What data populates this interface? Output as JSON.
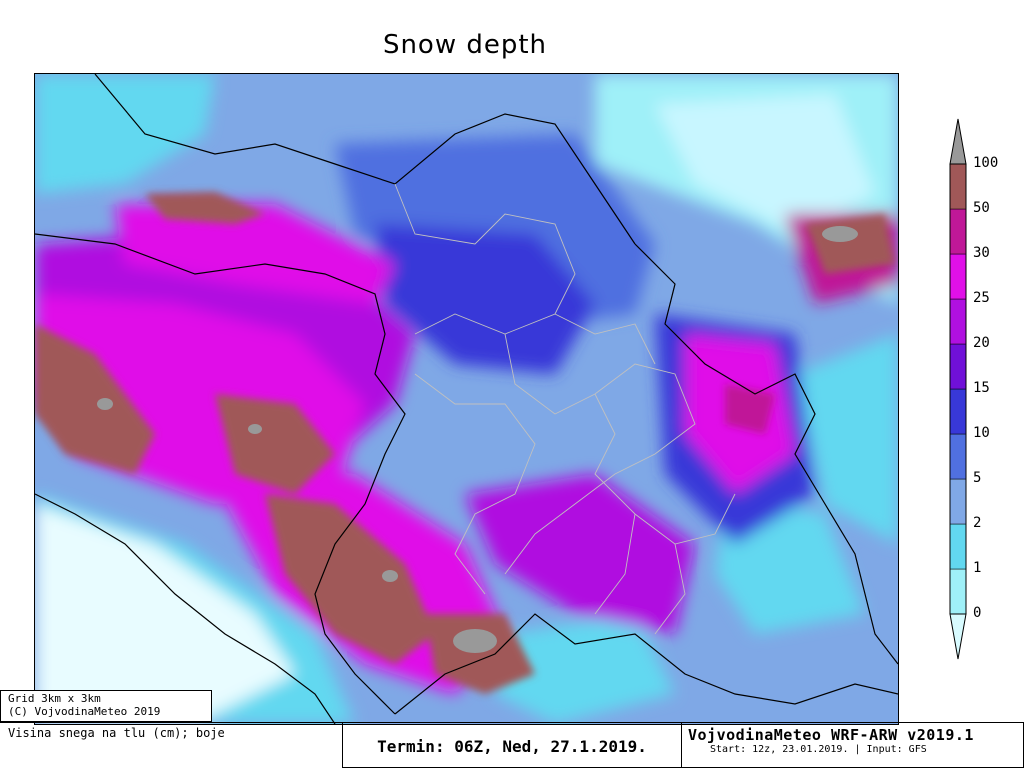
{
  "chart_data": {
    "type": "heatmap",
    "title": "Snow depth",
    "colorbar": {
      "ticks": [
        "0",
        "1",
        "2",
        "5",
        "10",
        "15",
        "20",
        "25",
        "30",
        "50",
        "100"
      ],
      "colors": [
        "#d8fbff",
        "#9ff0f8",
        "#62d8f0",
        "#80a8e6",
        "#5070e0",
        "#3838d8",
        "#7010d8",
        "#b010e0",
        "#e010e8",
        "#c01898",
        "#a05858",
        "#999999"
      ]
    }
  },
  "info": {
    "grid_line1": "Grid 3km x 3km",
    "grid_line2": "(C) VojvodinaMeteo 2019",
    "variable": "Visina snega na tlu (cm); boje",
    "termin": "Termin: 06Z, Ned, 27.1.2019.",
    "brand": "VojvodinaMeteo WRF-ARW v2019.1",
    "start_info": "Start: 12z, 23.01.2019. | Input: GFS"
  }
}
